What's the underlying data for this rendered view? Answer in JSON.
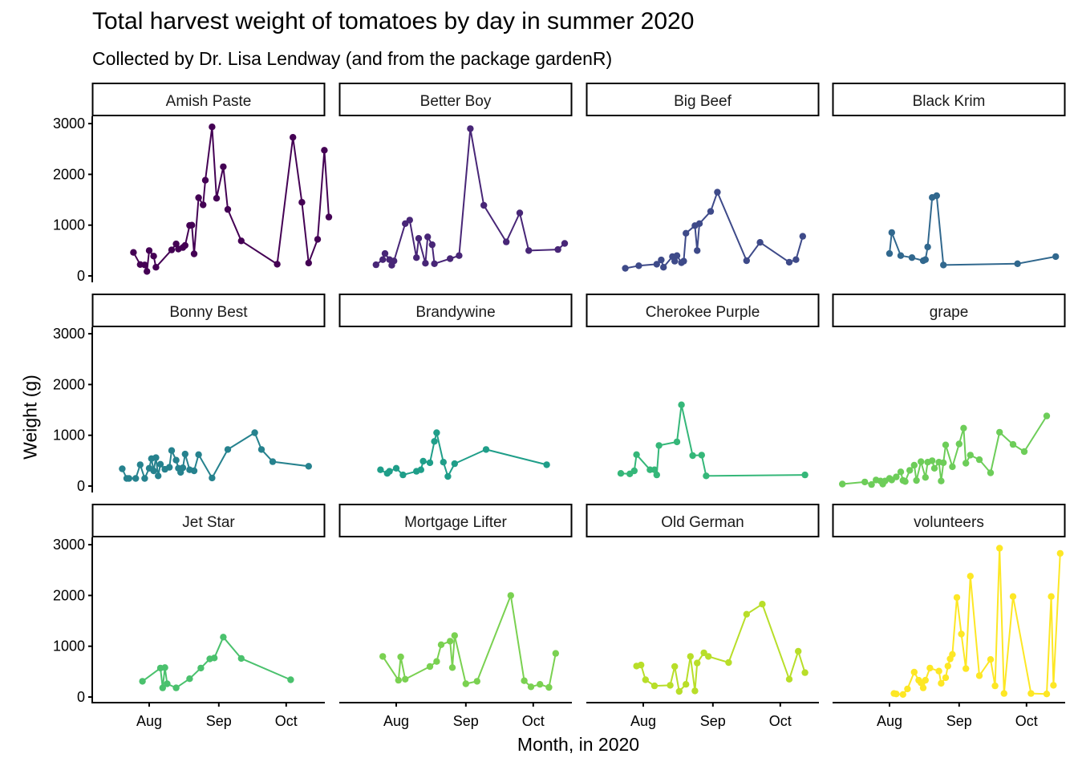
{
  "chart_data": {
    "type": "line",
    "title": "Total harvest weight of tomatoes by day in summer 2020",
    "subtitle": "Collected by Dr. Lisa Lendway (and from the package gardenR)",
    "xlabel": "Month, in 2020",
    "ylabel": "Weight (g)",
    "y_ticks": [
      0,
      1000,
      2000,
      3000
    ],
    "x_ticks": [
      {
        "label": "Aug",
        "date": "2020-08-01"
      },
      {
        "label": "Sep",
        "date": "2020-09-01"
      },
      {
        "label": "Oct",
        "date": "2020-10-01"
      }
    ],
    "xlim": [
      "2020-07-07",
      "2020-10-19"
    ],
    "ylim": [
      0,
      3000
    ],
    "grid": false,
    "legend": "none",
    "facet_layout": {
      "columns": 4,
      "rows": 3
    },
    "series": [
      {
        "name": "Amish Paste",
        "color": "#440154",
        "points": [
          [
            "2020-07-25",
            463
          ],
          [
            "2020-07-28",
            225
          ],
          [
            "2020-07-30",
            216
          ],
          [
            "2020-07-31",
            88
          ],
          [
            "2020-08-01",
            500
          ],
          [
            "2020-08-03",
            390
          ],
          [
            "2020-08-04",
            170
          ],
          [
            "2020-08-11",
            512
          ],
          [
            "2020-08-13",
            630
          ],
          [
            "2020-08-14",
            530
          ],
          [
            "2020-08-16",
            560
          ],
          [
            "2020-08-17",
            600
          ],
          [
            "2020-08-19",
            993
          ],
          [
            "2020-08-20",
            1000
          ],
          [
            "2020-08-21",
            435
          ],
          [
            "2020-08-23",
            1540
          ],
          [
            "2020-08-25",
            1400
          ],
          [
            "2020-08-26",
            1885
          ],
          [
            "2020-08-29",
            2935
          ],
          [
            "2020-08-31",
            1530
          ],
          [
            "2020-09-03",
            2150
          ],
          [
            "2020-09-05",
            1310
          ],
          [
            "2020-09-11",
            690
          ],
          [
            "2020-09-27",
            230
          ],
          [
            "2020-10-04",
            2730
          ],
          [
            "2020-10-08",
            1450
          ],
          [
            "2020-10-11",
            255
          ],
          [
            "2020-10-15",
            720
          ],
          [
            "2020-10-18",
            2475
          ],
          [
            "2020-10-20",
            1160
          ]
        ]
      },
      {
        "name": "Better Boy",
        "color": "#482677",
        "points": [
          [
            "2020-07-23",
            220
          ],
          [
            "2020-07-26",
            320
          ],
          [
            "2020-07-27",
            440
          ],
          [
            "2020-07-29",
            320
          ],
          [
            "2020-07-30",
            210
          ],
          [
            "2020-07-31",
            295
          ],
          [
            "2020-08-05",
            1030
          ],
          [
            "2020-08-07",
            1100
          ],
          [
            "2020-08-10",
            360
          ],
          [
            "2020-08-11",
            740
          ],
          [
            "2020-08-14",
            250
          ],
          [
            "2020-08-15",
            770
          ],
          [
            "2020-08-17",
            615
          ],
          [
            "2020-08-18",
            240
          ],
          [
            "2020-08-25",
            340
          ],
          [
            "2020-08-29",
            400
          ],
          [
            "2020-09-03",
            2900
          ],
          [
            "2020-09-09",
            1390
          ],
          [
            "2020-09-19",
            670
          ],
          [
            "2020-09-25",
            1240
          ],
          [
            "2020-09-29",
            500
          ],
          [
            "2020-10-12",
            520
          ],
          [
            "2020-10-15",
            640
          ]
        ]
      },
      {
        "name": "Big Beef",
        "color": "#3E4A89",
        "points": [
          [
            "2020-07-24",
            150
          ],
          [
            "2020-07-30",
            200
          ],
          [
            "2020-08-07",
            230
          ],
          [
            "2020-08-09",
            315
          ],
          [
            "2020-08-10",
            170
          ],
          [
            "2020-08-14",
            380
          ],
          [
            "2020-08-15",
            290
          ],
          [
            "2020-08-16",
            400
          ],
          [
            "2020-08-18",
            260
          ],
          [
            "2020-08-19",
            290
          ],
          [
            "2020-08-20",
            840
          ],
          [
            "2020-08-24",
            990
          ],
          [
            "2020-08-25",
            500
          ],
          [
            "2020-08-26",
            1030
          ],
          [
            "2020-08-31",
            1270
          ],
          [
            "2020-09-03",
            1650
          ],
          [
            "2020-09-16",
            300
          ],
          [
            "2020-09-22",
            660
          ],
          [
            "2020-10-05",
            270
          ],
          [
            "2020-10-08",
            320
          ],
          [
            "2020-10-11",
            780
          ]
        ]
      },
      {
        "name": "Black Krim",
        "color": "#31688E",
        "points": [
          [
            "2020-08-01",
            440
          ],
          [
            "2020-08-02",
            855
          ],
          [
            "2020-08-06",
            400
          ],
          [
            "2020-08-11",
            360
          ],
          [
            "2020-08-16",
            300
          ],
          [
            "2020-08-17",
            320
          ],
          [
            "2020-08-18",
            570
          ],
          [
            "2020-08-20",
            1545
          ],
          [
            "2020-08-22",
            1580
          ],
          [
            "2020-08-25",
            215
          ],
          [
            "2020-09-27",
            240
          ],
          [
            "2020-10-14",
            380
          ]
        ]
      },
      {
        "name": "Bonny Best",
        "color": "#26828E",
        "points": [
          [
            "2020-07-20",
            340
          ],
          [
            "2020-07-22",
            150
          ],
          [
            "2020-07-23",
            150
          ],
          [
            "2020-07-26",
            150
          ],
          [
            "2020-07-28",
            420
          ],
          [
            "2020-07-30",
            150
          ],
          [
            "2020-08-01",
            350
          ],
          [
            "2020-08-02",
            540
          ],
          [
            "2020-08-03",
            300
          ],
          [
            "2020-08-04",
            560
          ],
          [
            "2020-08-05",
            200
          ],
          [
            "2020-08-06",
            430
          ],
          [
            "2020-08-08",
            330
          ],
          [
            "2020-08-10",
            370
          ],
          [
            "2020-08-11",
            700
          ],
          [
            "2020-08-13",
            510
          ],
          [
            "2020-08-14",
            350
          ],
          [
            "2020-08-15",
            270
          ],
          [
            "2020-08-16",
            360
          ],
          [
            "2020-08-17",
            630
          ],
          [
            "2020-08-19",
            320
          ],
          [
            "2020-08-21",
            300
          ],
          [
            "2020-08-23",
            620
          ],
          [
            "2020-08-29",
            160
          ],
          [
            "2020-09-05",
            720
          ],
          [
            "2020-09-17",
            1050
          ],
          [
            "2020-09-20",
            720
          ],
          [
            "2020-09-25",
            480
          ],
          [
            "2020-10-11",
            390
          ]
        ]
      },
      {
        "name": "Brandywine",
        "color": "#1F9E89",
        "points": [
          [
            "2020-07-25",
            320
          ],
          [
            "2020-07-28",
            250
          ],
          [
            "2020-07-29",
            290
          ],
          [
            "2020-08-01",
            350
          ],
          [
            "2020-08-04",
            220
          ],
          [
            "2020-08-10",
            290
          ],
          [
            "2020-08-12",
            320
          ],
          [
            "2020-08-13",
            490
          ],
          [
            "2020-08-16",
            460
          ],
          [
            "2020-08-18",
            880
          ],
          [
            "2020-08-19",
            1050
          ],
          [
            "2020-08-22",
            470
          ],
          [
            "2020-08-24",
            190
          ],
          [
            "2020-08-27",
            440
          ],
          [
            "2020-09-10",
            720
          ],
          [
            "2020-10-07",
            420
          ]
        ]
      },
      {
        "name": "Cherokee Purple",
        "color": "#35B779",
        "points": [
          [
            "2020-07-22",
            250
          ],
          [
            "2020-07-26",
            240
          ],
          [
            "2020-07-28",
            300
          ],
          [
            "2020-07-29",
            620
          ],
          [
            "2020-08-04",
            320
          ],
          [
            "2020-08-06",
            320
          ],
          [
            "2020-08-07",
            220
          ],
          [
            "2020-08-08",
            800
          ],
          [
            "2020-08-16",
            870
          ],
          [
            "2020-08-18",
            1600
          ],
          [
            "2020-08-23",
            600
          ],
          [
            "2020-08-27",
            610
          ],
          [
            "2020-08-29",
            200
          ],
          [
            "2020-10-12",
            220
          ]
        ]
      },
      {
        "name": "grape",
        "color": "#6DCD59",
        "points": [
          [
            "2020-07-11",
            40
          ],
          [
            "2020-07-21",
            80
          ],
          [
            "2020-07-24",
            30
          ],
          [
            "2020-07-26",
            120
          ],
          [
            "2020-07-28",
            100
          ],
          [
            "2020-07-29",
            40
          ],
          [
            "2020-07-30",
            100
          ],
          [
            "2020-08-01",
            150
          ],
          [
            "2020-08-02",
            120
          ],
          [
            "2020-08-04",
            180
          ],
          [
            "2020-08-06",
            280
          ],
          [
            "2020-08-07",
            110
          ],
          [
            "2020-08-08",
            90
          ],
          [
            "2020-08-10",
            310
          ],
          [
            "2020-08-12",
            410
          ],
          [
            "2020-08-13",
            110
          ],
          [
            "2020-08-15",
            480
          ],
          [
            "2020-08-17",
            170
          ],
          [
            "2020-08-18",
            470
          ],
          [
            "2020-08-20",
            500
          ],
          [
            "2020-08-21",
            350
          ],
          [
            "2020-08-23",
            470
          ],
          [
            "2020-08-24",
            100
          ],
          [
            "2020-08-25",
            460
          ],
          [
            "2020-08-26",
            810
          ],
          [
            "2020-08-29",
            380
          ],
          [
            "2020-09-01",
            830
          ],
          [
            "2020-09-03",
            1140
          ],
          [
            "2020-09-04",
            450
          ],
          [
            "2020-09-06",
            610
          ],
          [
            "2020-09-10",
            520
          ],
          [
            "2020-09-15",
            260
          ],
          [
            "2020-09-19",
            1060
          ],
          [
            "2020-09-25",
            820
          ],
          [
            "2020-09-30",
            680
          ],
          [
            "2020-10-10",
            1380
          ]
        ]
      },
      {
        "name": "Jet Star",
        "color": "#4AC16D",
        "points": [
          [
            "2020-07-29",
            310
          ],
          [
            "2020-08-06",
            570
          ],
          [
            "2020-08-07",
            180
          ],
          [
            "2020-08-08",
            580
          ],
          [
            "2020-08-09",
            260
          ],
          [
            "2020-08-13",
            180
          ],
          [
            "2020-08-19",
            360
          ],
          [
            "2020-08-24",
            570
          ],
          [
            "2020-08-28",
            750
          ],
          [
            "2020-08-30",
            770
          ],
          [
            "2020-09-03",
            1180
          ],
          [
            "2020-09-11",
            760
          ],
          [
            "2020-10-03",
            340
          ]
        ]
      },
      {
        "name": "Mortgage Lifter",
        "color": "#7AD151",
        "points": [
          [
            "2020-07-26",
            800
          ],
          [
            "2020-08-02",
            330
          ],
          [
            "2020-08-03",
            790
          ],
          [
            "2020-08-05",
            350
          ],
          [
            "2020-08-16",
            600
          ],
          [
            "2020-08-19",
            700
          ],
          [
            "2020-08-21",
            1030
          ],
          [
            "2020-08-25",
            1100
          ],
          [
            "2020-08-26",
            580
          ],
          [
            "2020-08-27",
            1210
          ],
          [
            "2020-09-01",
            260
          ],
          [
            "2020-09-06",
            310
          ],
          [
            "2020-09-21",
            2000
          ],
          [
            "2020-09-27",
            320
          ],
          [
            "2020-09-30",
            200
          ],
          [
            "2020-10-04",
            250
          ],
          [
            "2020-10-08",
            190
          ],
          [
            "2020-10-11",
            860
          ]
        ]
      },
      {
        "name": "Old German",
        "color": "#B8DE29",
        "points": [
          [
            "2020-07-29",
            610
          ],
          [
            "2020-07-31",
            630
          ],
          [
            "2020-08-02",
            340
          ],
          [
            "2020-08-06",
            220
          ],
          [
            "2020-08-13",
            230
          ],
          [
            "2020-08-15",
            600
          ],
          [
            "2020-08-17",
            110
          ],
          [
            "2020-08-20",
            250
          ],
          [
            "2020-08-22",
            800
          ],
          [
            "2020-08-24",
            120
          ],
          [
            "2020-08-25",
            670
          ],
          [
            "2020-08-28",
            870
          ],
          [
            "2020-08-30",
            800
          ],
          [
            "2020-09-08",
            680
          ],
          [
            "2020-09-16",
            1630
          ],
          [
            "2020-09-23",
            1830
          ],
          [
            "2020-10-05",
            350
          ],
          [
            "2020-10-09",
            900
          ],
          [
            "2020-10-12",
            480
          ]
        ]
      },
      {
        "name": "volunteers",
        "color": "#FDE725",
        "points": [
          [
            "2020-08-03",
            70
          ],
          [
            "2020-08-04",
            60
          ],
          [
            "2020-08-07",
            50
          ],
          [
            "2020-08-09",
            160
          ],
          [
            "2020-08-12",
            490
          ],
          [
            "2020-08-14",
            330
          ],
          [
            "2020-08-15",
            280
          ],
          [
            "2020-08-16",
            180
          ],
          [
            "2020-08-17",
            330
          ],
          [
            "2020-08-19",
            570
          ],
          [
            "2020-08-23",
            510
          ],
          [
            "2020-08-24",
            270
          ],
          [
            "2020-08-26",
            380
          ],
          [
            "2020-08-27",
            610
          ],
          [
            "2020-08-28",
            750
          ],
          [
            "2020-08-29",
            840
          ],
          [
            "2020-08-31",
            1960
          ],
          [
            "2020-09-02",
            1240
          ],
          [
            "2020-09-04",
            560
          ],
          [
            "2020-09-06",
            2380
          ],
          [
            "2020-09-10",
            420
          ],
          [
            "2020-09-15",
            740
          ],
          [
            "2020-09-17",
            220
          ],
          [
            "2020-09-19",
            2930
          ],
          [
            "2020-09-21",
            70
          ],
          [
            "2020-09-25",
            1980
          ],
          [
            "2020-10-03",
            70
          ],
          [
            "2020-10-10",
            60
          ],
          [
            "2020-10-12",
            1980
          ],
          [
            "2020-10-13",
            230
          ],
          [
            "2020-10-16",
            2830
          ]
        ]
      }
    ]
  }
}
